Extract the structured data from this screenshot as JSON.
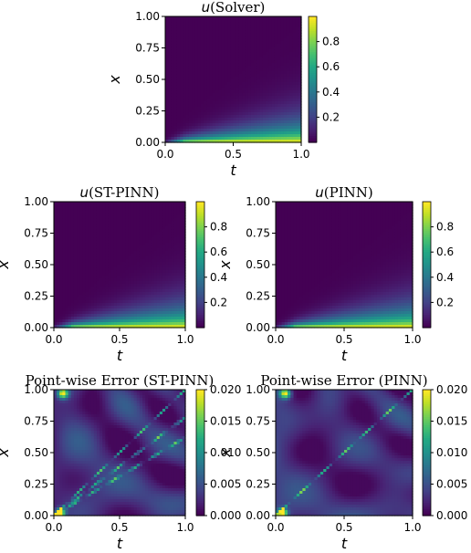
{
  "chart_data": [
    {
      "type": "heatmap",
      "title": "u(Solver)",
      "title_var": "u",
      "title_rest": "(Solver)",
      "xlabel": "t",
      "ylabel": "x",
      "xlim": [
        0.0,
        1.0
      ],
      "ylim": [
        0.0,
        1.0
      ],
      "xticks": [
        "0.0",
        "0.5",
        "1.0"
      ],
      "yticks": [
        "0.00",
        "0.25",
        "0.50",
        "0.75",
        "1.00"
      ],
      "colorbar": {
        "min": 0.0,
        "max": 1.0,
        "ticks": [
          "0.2",
          "0.4",
          "0.6",
          "0.8"
        ],
        "colormap": "viridis"
      },
      "field": "solution",
      "grid": false
    },
    {
      "type": "heatmap",
      "title": "u(ST-PINN)",
      "title_var": "u",
      "title_rest": "(ST-PINN)",
      "xlabel": "t",
      "ylabel": "x",
      "xlim": [
        0.0,
        1.0
      ],
      "ylim": [
        0.0,
        1.0
      ],
      "xticks": [
        "0.0",
        "0.5",
        "1.0"
      ],
      "yticks": [
        "0.00",
        "0.25",
        "0.50",
        "0.75",
        "1.00"
      ],
      "colorbar": {
        "min": 0.0,
        "max": 1.0,
        "ticks": [
          "0.2",
          "0.4",
          "0.6",
          "0.8"
        ],
        "colormap": "viridis"
      },
      "field": "solution",
      "grid": false
    },
    {
      "type": "heatmap",
      "title": "u(PINN)",
      "title_var": "u",
      "title_rest": "(PINN)",
      "xlabel": "t",
      "ylabel": "x",
      "xlim": [
        0.0,
        1.0
      ],
      "ylim": [
        0.0,
        1.0
      ],
      "xticks": [
        "0.0",
        "0.5",
        "1.0"
      ],
      "yticks": [
        "0.00",
        "0.25",
        "0.50",
        "0.75",
        "1.00"
      ],
      "colorbar": {
        "min": 0.0,
        "max": 1.0,
        "ticks": [
          "0.2",
          "0.4",
          "0.6",
          "0.8"
        ],
        "colormap": "viridis"
      },
      "field": "solution",
      "grid": false
    },
    {
      "type": "heatmap",
      "title": "Point-wise Error (ST-PINN)",
      "title_var": "",
      "title_rest": "Point-wise Error (ST-PINN)",
      "xlabel": "t",
      "ylabel": "x",
      "xlim": [
        0.0,
        1.0
      ],
      "ylim": [
        0.0,
        1.0
      ],
      "xticks": [
        "0.0",
        "0.5",
        "1.0"
      ],
      "yticks": [
        "0.00",
        "0.25",
        "0.50",
        "0.75",
        "1.00"
      ],
      "colorbar": {
        "min": 0.0,
        "max": 0.02,
        "ticks": [
          "0.000",
          "0.005",
          "0.010",
          "0.015",
          "0.020"
        ],
        "colormap": "viridis"
      },
      "field": "error",
      "diagonal_stripes": [
        1,
        2,
        3
      ],
      "grid": false
    },
    {
      "type": "heatmap",
      "title": "Point-wise Error (PINN)",
      "title_var": "",
      "title_rest": "Point-wise Error (PINN)",
      "xlabel": "t",
      "ylabel": "x",
      "xlim": [
        0.0,
        1.0
      ],
      "ylim": [
        0.0,
        1.0
      ],
      "xticks": [
        "0.0",
        "0.5",
        "1.0"
      ],
      "yticks": [
        "0.00",
        "0.25",
        "0.50",
        "0.75",
        "1.00"
      ],
      "colorbar": {
        "min": 0.0,
        "max": 0.02,
        "ticks": [
          "0.000",
          "0.005",
          "0.010",
          "0.015",
          "0.020"
        ],
        "colormap": "viridis"
      },
      "field": "error",
      "diagonal_stripes": [
        1
      ],
      "grid": false
    }
  ]
}
